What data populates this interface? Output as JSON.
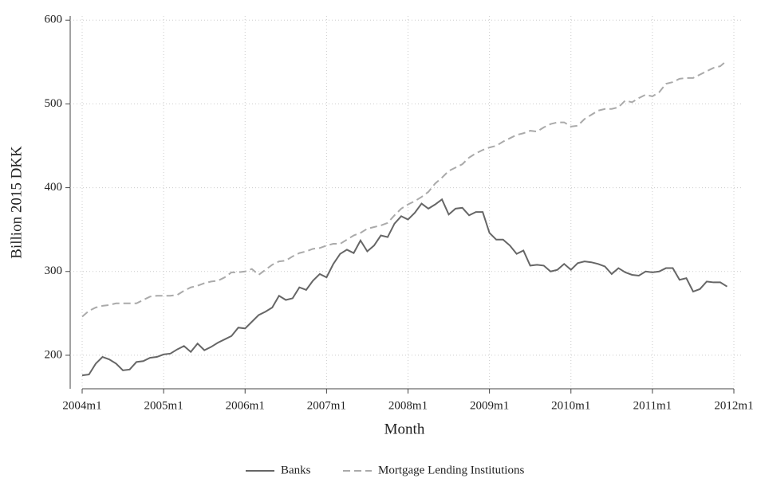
{
  "chart_data": {
    "type": "line",
    "xlabel": "Month",
    "ylabel": "Billion 2015 DKK",
    "x": [
      528,
      529,
      530,
      531,
      532,
      533,
      534,
      535,
      536,
      537,
      538,
      539,
      540,
      541,
      542,
      543,
      544,
      545,
      546,
      547,
      548,
      549,
      550,
      551,
      552,
      553,
      554,
      555,
      556,
      557,
      558,
      559,
      560,
      561,
      562,
      563,
      564,
      565,
      566,
      567,
      568,
      569,
      570,
      571,
      572,
      573,
      574,
      575,
      576,
      577,
      578,
      579,
      580,
      581,
      582,
      583,
      584,
      585,
      586,
      587,
      588,
      589,
      590,
      591,
      592,
      593,
      594,
      595,
      596,
      597,
      598,
      599,
      600,
      601,
      602,
      603,
      604,
      605,
      606,
      607,
      608,
      609,
      610,
      611,
      612,
      613,
      614,
      615,
      616,
      617,
      618,
      619,
      620,
      621,
      622,
      623
    ],
    "series": [
      {
        "name": "Banks",
        "color": "#666666",
        "dash": false,
        "values": [
          176,
          177,
          190,
          198,
          195,
          190,
          182,
          183,
          192,
          193,
          197,
          198,
          201,
          202,
          207,
          211,
          204,
          214,
          206,
          210,
          215,
          219,
          223,
          233,
          232,
          240,
          248,
          252,
          257,
          271,
          266,
          268,
          281,
          278,
          289,
          297,
          293,
          309,
          321,
          326,
          322,
          337,
          324,
          331,
          343,
          341,
          357,
          366,
          362,
          370,
          381,
          375,
          380,
          386,
          368,
          375,
          376,
          367,
          371,
          371,
          346,
          338,
          338,
          331,
          321,
          325,
          307,
          308,
          307,
          300,
          302,
          309,
          302,
          310,
          312,
          311,
          309,
          306,
          297,
          304,
          299,
          296,
          295,
          300,
          299,
          300,
          304,
          304,
          290,
          292,
          276,
          279,
          288,
          287,
          287,
          282
        ]
      },
      {
        "name": "Mortgage Lending Institutions",
        "color": "#aaaaaa",
        "dash": true,
        "values": [
          246,
          253,
          257,
          259,
          260,
          262,
          262,
          262,
          262,
          266,
          270,
          271,
          271,
          271,
          272,
          277,
          281,
          283,
          286,
          288,
          289,
          293,
          299,
          299,
          300,
          303,
          296,
          302,
          308,
          312,
          313,
          318,
          322,
          324,
          327,
          328,
          331,
          333,
          333,
          338,
          343,
          346,
          351,
          353,
          355,
          358,
          367,
          375,
          380,
          384,
          389,
          395,
          405,
          412,
          420,
          424,
          428,
          436,
          441,
          445,
          448,
          450,
          455,
          459,
          463,
          465,
          468,
          467,
          472,
          476,
          478,
          478,
          473,
          474,
          482,
          487,
          492,
          494,
          494,
          496,
          504,
          502,
          507,
          511,
          509,
          514,
          524,
          526,
          530,
          531,
          531,
          535,
          539,
          543,
          545,
          552
        ]
      }
    ],
    "xlim": [
      528,
      624
    ],
    "xticks": [
      {
        "value": 528,
        "label": "2004m1"
      },
      {
        "value": 540,
        "label": "2005m1"
      },
      {
        "value": 552,
        "label": "2006m1"
      },
      {
        "value": 564,
        "label": "2007m1"
      },
      {
        "value": 576,
        "label": "2008m1"
      },
      {
        "value": 588,
        "label": "2009m1"
      },
      {
        "value": 600,
        "label": "2010m1"
      },
      {
        "value": 612,
        "label": "2011m1"
      },
      {
        "value": 624,
        "label": "2012m1"
      }
    ],
    "ylim": [
      160,
      605
    ],
    "yticks": [
      200,
      300,
      400,
      500,
      600
    ],
    "grid": true,
    "legend": "bottom"
  }
}
